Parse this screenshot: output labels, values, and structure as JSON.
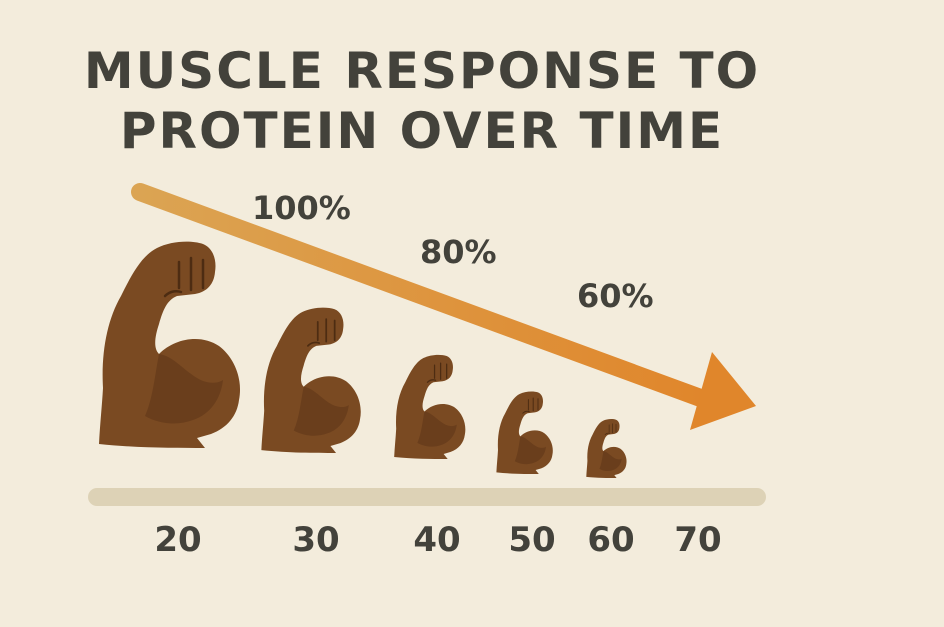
{
  "title_lines": [
    "MUSCLE RESPONSE TO",
    "PROTEIN OVER TIME"
  ],
  "percent_labels": [
    "100%",
    "80%",
    "60%"
  ],
  "age_labels": [
    "20",
    "30",
    "40",
    "50",
    "60",
    "70"
  ],
  "icons": {
    "muscle": "flexed-bicep-icon",
    "trend": "down-arrow-icon"
  },
  "colors": {
    "background": "#f3ecdc",
    "text": "#43423b",
    "muscle": "#7a4a22",
    "muscle_shade": "#5c3517",
    "arrow_start": "#dba453",
    "arrow_end": "#e0862b",
    "baseline": "#ddd2b6"
  },
  "muscle_count": 5
}
